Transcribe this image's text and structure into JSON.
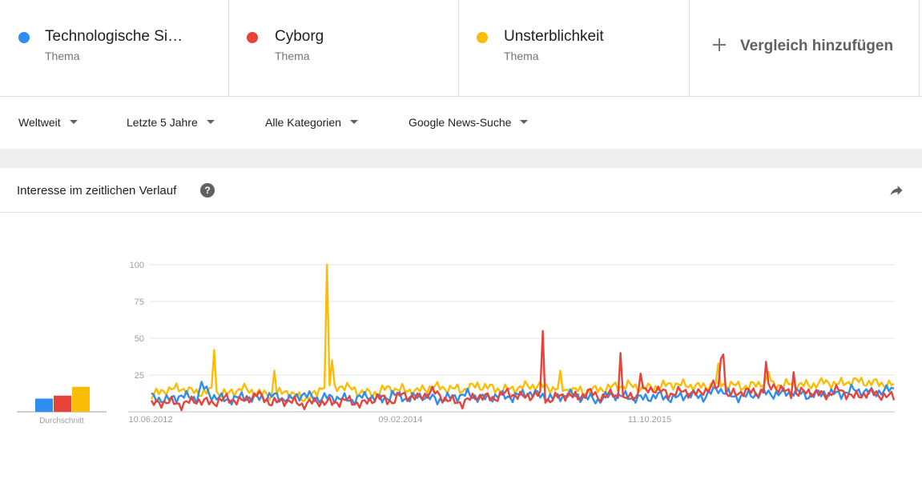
{
  "colors": {
    "blue": "#2d8ef0",
    "red": "#e8433a",
    "yellow": "#fbbc05"
  },
  "terms": [
    {
      "name": "Technologische Si…",
      "type": "Thema",
      "color": "#2d8ef0"
    },
    {
      "name": "Cyborg",
      "type": "Thema",
      "color": "#e8433a"
    },
    {
      "name": "Unsterblichkeit",
      "type": "Thema",
      "color": "#fbbc05"
    }
  ],
  "add_compare": {
    "label": "Vergleich hinzufügen",
    "icon": "plus-icon"
  },
  "filters": {
    "region": "Weltweit",
    "time": "Letzte 5 Jahre",
    "category": "Alle Kategorien",
    "search_type": "Google News-Suche"
  },
  "card": {
    "title": "Interesse im zeitlichen Verlauf",
    "help_icon": "help-icon",
    "help_glyph": "?",
    "share_icon": "share-icon"
  },
  "chart_data": {
    "type": "line",
    "title": "",
    "ylim": [
      0,
      100
    ],
    "yticks": [
      25,
      50,
      75,
      100
    ],
    "grid": true,
    "x_labels": [
      "10.06.2012",
      "09.02.2014",
      "11.10.2015"
    ],
    "average": {
      "label": "Durchschnitt",
      "values": [
        9,
        11,
        17
      ]
    },
    "series": [
      {
        "name": "Technologische Si…",
        "color": "#2d8ef0",
        "anchors": [
          [
            0,
            10
          ],
          [
            6,
            8
          ],
          [
            12,
            11
          ],
          [
            18,
            9
          ],
          [
            20,
            18
          ],
          [
            24,
            11
          ],
          [
            30,
            8
          ],
          [
            36,
            10
          ],
          [
            42,
            9
          ],
          [
            48,
            11
          ],
          [
            55,
            8
          ],
          [
            60,
            12
          ],
          [
            66,
            9
          ],
          [
            72,
            10
          ],
          [
            80,
            8
          ],
          [
            86,
            11
          ],
          [
            92,
            8
          ],
          [
            96,
            12
          ],
          [
            102,
            9
          ],
          [
            108,
            11
          ],
          [
            114,
            8
          ],
          [
            120,
            10
          ],
          [
            126,
            12
          ],
          [
            132,
            9
          ],
          [
            138,
            11
          ],
          [
            144,
            10
          ],
          [
            150,
            13
          ],
          [
            156,
            11
          ],
          [
            160,
            9
          ],
          [
            166,
            12
          ],
          [
            172,
            10
          ],
          [
            178,
            8
          ],
          [
            184,
            12
          ],
          [
            190,
            10
          ],
          [
            196,
            9
          ],
          [
            202,
            11
          ],
          [
            208,
            9
          ],
          [
            214,
            12
          ],
          [
            220,
            10
          ],
          [
            226,
            16
          ],
          [
            232,
            10
          ],
          [
            238,
            11
          ],
          [
            244,
            13
          ],
          [
            250,
            12
          ],
          [
            256,
            14
          ],
          [
            262,
            11
          ],
          [
            268,
            13
          ],
          [
            274,
            12
          ],
          [
            280,
            15
          ],
          [
            286,
            13
          ],
          [
            292,
            14
          ],
          [
            296,
            16
          ]
        ]
      },
      {
        "name": "Cyborg",
        "color": "#e8433a",
        "anchors": [
          [
            0,
            5
          ],
          [
            6,
            7
          ],
          [
            12,
            5
          ],
          [
            18,
            8
          ],
          [
            24,
            6
          ],
          [
            30,
            9
          ],
          [
            36,
            7
          ],
          [
            42,
            12
          ],
          [
            48,
            6
          ],
          [
            54,
            8
          ],
          [
            60,
            5
          ],
          [
            66,
            7
          ],
          [
            72,
            6
          ],
          [
            78,
            8
          ],
          [
            84,
            5
          ],
          [
            90,
            10
          ],
          [
            96,
            7
          ],
          [
            100,
            12
          ],
          [
            106,
            9
          ],
          [
            112,
            14
          ],
          [
            118,
            8
          ],
          [
            124,
            6
          ],
          [
            130,
            11
          ],
          [
            136,
            9
          ],
          [
            142,
            13
          ],
          [
            148,
            10
          ],
          [
            154,
            12
          ],
          [
            158,
            8
          ],
          [
            162,
            10
          ],
          [
            166,
            12
          ],
          [
            170,
            9
          ],
          [
            174,
            14
          ],
          [
            178,
            10
          ],
          [
            184,
            12
          ],
          [
            188,
            8
          ],
          [
            194,
            12
          ],
          [
            200,
            16
          ],
          [
            206,
            12
          ],
          [
            212,
            14
          ],
          [
            218,
            12
          ],
          [
            224,
            18
          ],
          [
            230,
            11
          ],
          [
            236,
            14
          ],
          [
            242,
            13
          ],
          [
            248,
            18
          ],
          [
            252,
            14
          ],
          [
            256,
            12
          ],
          [
            262,
            14
          ],
          [
            268,
            11
          ],
          [
            274,
            15
          ],
          [
            280,
            10
          ],
          [
            286,
            13
          ],
          [
            292,
            11
          ],
          [
            296,
            10
          ]
        ],
        "spikes": [
          [
            156,
            55
          ],
          [
            187,
            40
          ],
          [
            227,
            36
          ],
          [
            228,
            39
          ],
          [
            245,
            34
          ],
          [
            256,
            27
          ],
          [
            195,
            26
          ]
        ]
      },
      {
        "name": "Unsterblichkeit",
        "color": "#fbbc05",
        "anchors": [
          [
            0,
            11
          ],
          [
            6,
            15
          ],
          [
            12,
            16
          ],
          [
            18,
            13
          ],
          [
            24,
            14
          ],
          [
            30,
            12
          ],
          [
            36,
            16
          ],
          [
            42,
            13
          ],
          [
            48,
            11
          ],
          [
            54,
            14
          ],
          [
            60,
            9
          ],
          [
            66,
            12
          ],
          [
            70,
            22
          ],
          [
            72,
            15
          ],
          [
            76,
            18
          ],
          [
            82,
            14
          ],
          [
            88,
            12
          ],
          [
            94,
            16
          ],
          [
            100,
            15
          ],
          [
            106,
            14
          ],
          [
            112,
            17
          ],
          [
            118,
            16
          ],
          [
            124,
            15
          ],
          [
            130,
            18
          ],
          [
            136,
            16
          ],
          [
            142,
            15
          ],
          [
            148,
            17
          ],
          [
            154,
            18
          ],
          [
            160,
            16
          ],
          [
            166,
            15
          ],
          [
            172,
            14
          ],
          [
            178,
            15
          ],
          [
            184,
            17
          ],
          [
            190,
            18
          ],
          [
            196,
            16
          ],
          [
            202,
            17
          ],
          [
            208,
            19
          ],
          [
            214,
            18
          ],
          [
            220,
            17
          ],
          [
            226,
            19
          ],
          [
            232,
            18
          ],
          [
            238,
            17
          ],
          [
            244,
            20
          ],
          [
            250,
            18
          ],
          [
            256,
            19
          ],
          [
            262,
            18
          ],
          [
            268,
            20
          ],
          [
            274,
            19
          ],
          [
            280,
            21
          ],
          [
            286,
            20
          ],
          [
            292,
            19
          ],
          [
            296,
            18
          ]
        ],
        "spikes": [
          [
            25,
            42
          ],
          [
            49,
            28
          ],
          [
            70,
            100
          ],
          [
            72,
            35
          ],
          [
            163,
            28
          ],
          [
            226,
            33
          ],
          [
            246,
            27
          ]
        ]
      }
    ]
  }
}
